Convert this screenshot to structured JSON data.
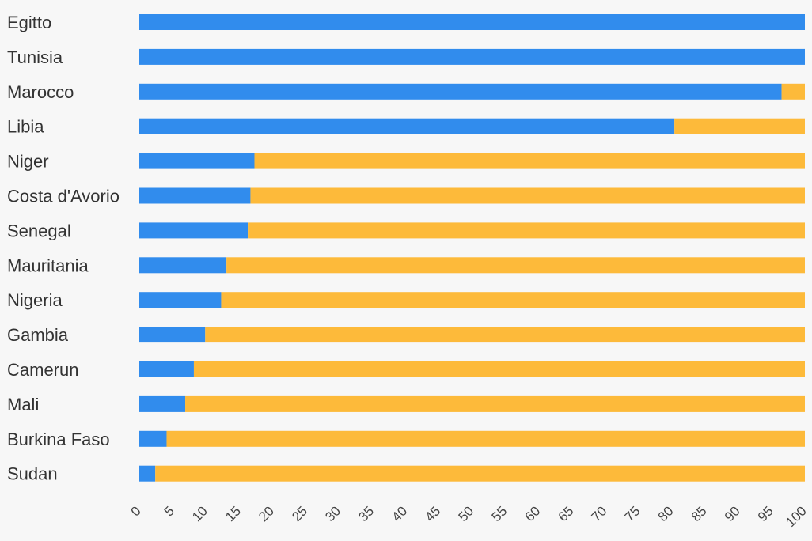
{
  "chart_data": {
    "type": "bar",
    "orientation": "horizontal",
    "stacked": true,
    "categories": [
      "Egitto",
      "Tunisia",
      "Marocco",
      "Libia",
      "Niger",
      "Costa d'Avorio",
      "Senegal",
      "Mauritania",
      "Nigeria",
      "Gambia",
      "Camerun",
      "Mali",
      "Burkina Faso",
      "Sudan"
    ],
    "series": [
      {
        "color": "#318ced",
        "values": [
          100,
          100,
          96.5,
          80.4,
          17.3,
          16.7,
          16.3,
          13.1,
          12.3,
          9.9,
          8.2,
          6.9,
          4.1,
          2.4
        ]
      },
      {
        "color": "#fdba3a",
        "values": [
          0,
          0,
          3.5,
          19.6,
          82.7,
          83.3,
          83.7,
          86.9,
          87.7,
          90.1,
          91.8,
          93.1,
          95.9,
          97.6
        ]
      }
    ],
    "xlim": [
      0,
      100
    ],
    "xticks": [
      "0",
      "5",
      "10",
      "15",
      "20",
      "25",
      "30",
      "35",
      "40",
      "45",
      "50",
      "55",
      "60",
      "65",
      "70",
      "75",
      "80",
      "85",
      "90",
      "95",
      "100"
    ],
    "title": "",
    "xlabel": "",
    "ylabel": "",
    "grid": false,
    "legend": "none"
  }
}
